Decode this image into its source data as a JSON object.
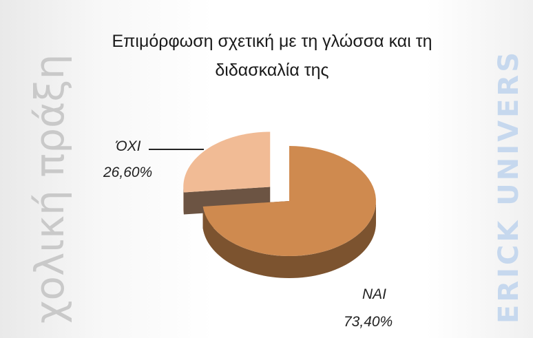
{
  "watermarks": [
    "χολική πράξη",
    "ERICK UNIVERS"
  ],
  "chart_data": {
    "type": "pie",
    "title": [
      "Επιμόρφωση σχετική με τη γλώσσα και τη",
      "διδασκαλία της"
    ],
    "categories": [
      "ΝΑΙ",
      "ΌΧΙ"
    ],
    "values": [
      73.4,
      26.6
    ],
    "value_labels": [
      "73,40%",
      "26,60%"
    ],
    "colors": [
      "#cf8a4f",
      "#f1bb95"
    ]
  }
}
